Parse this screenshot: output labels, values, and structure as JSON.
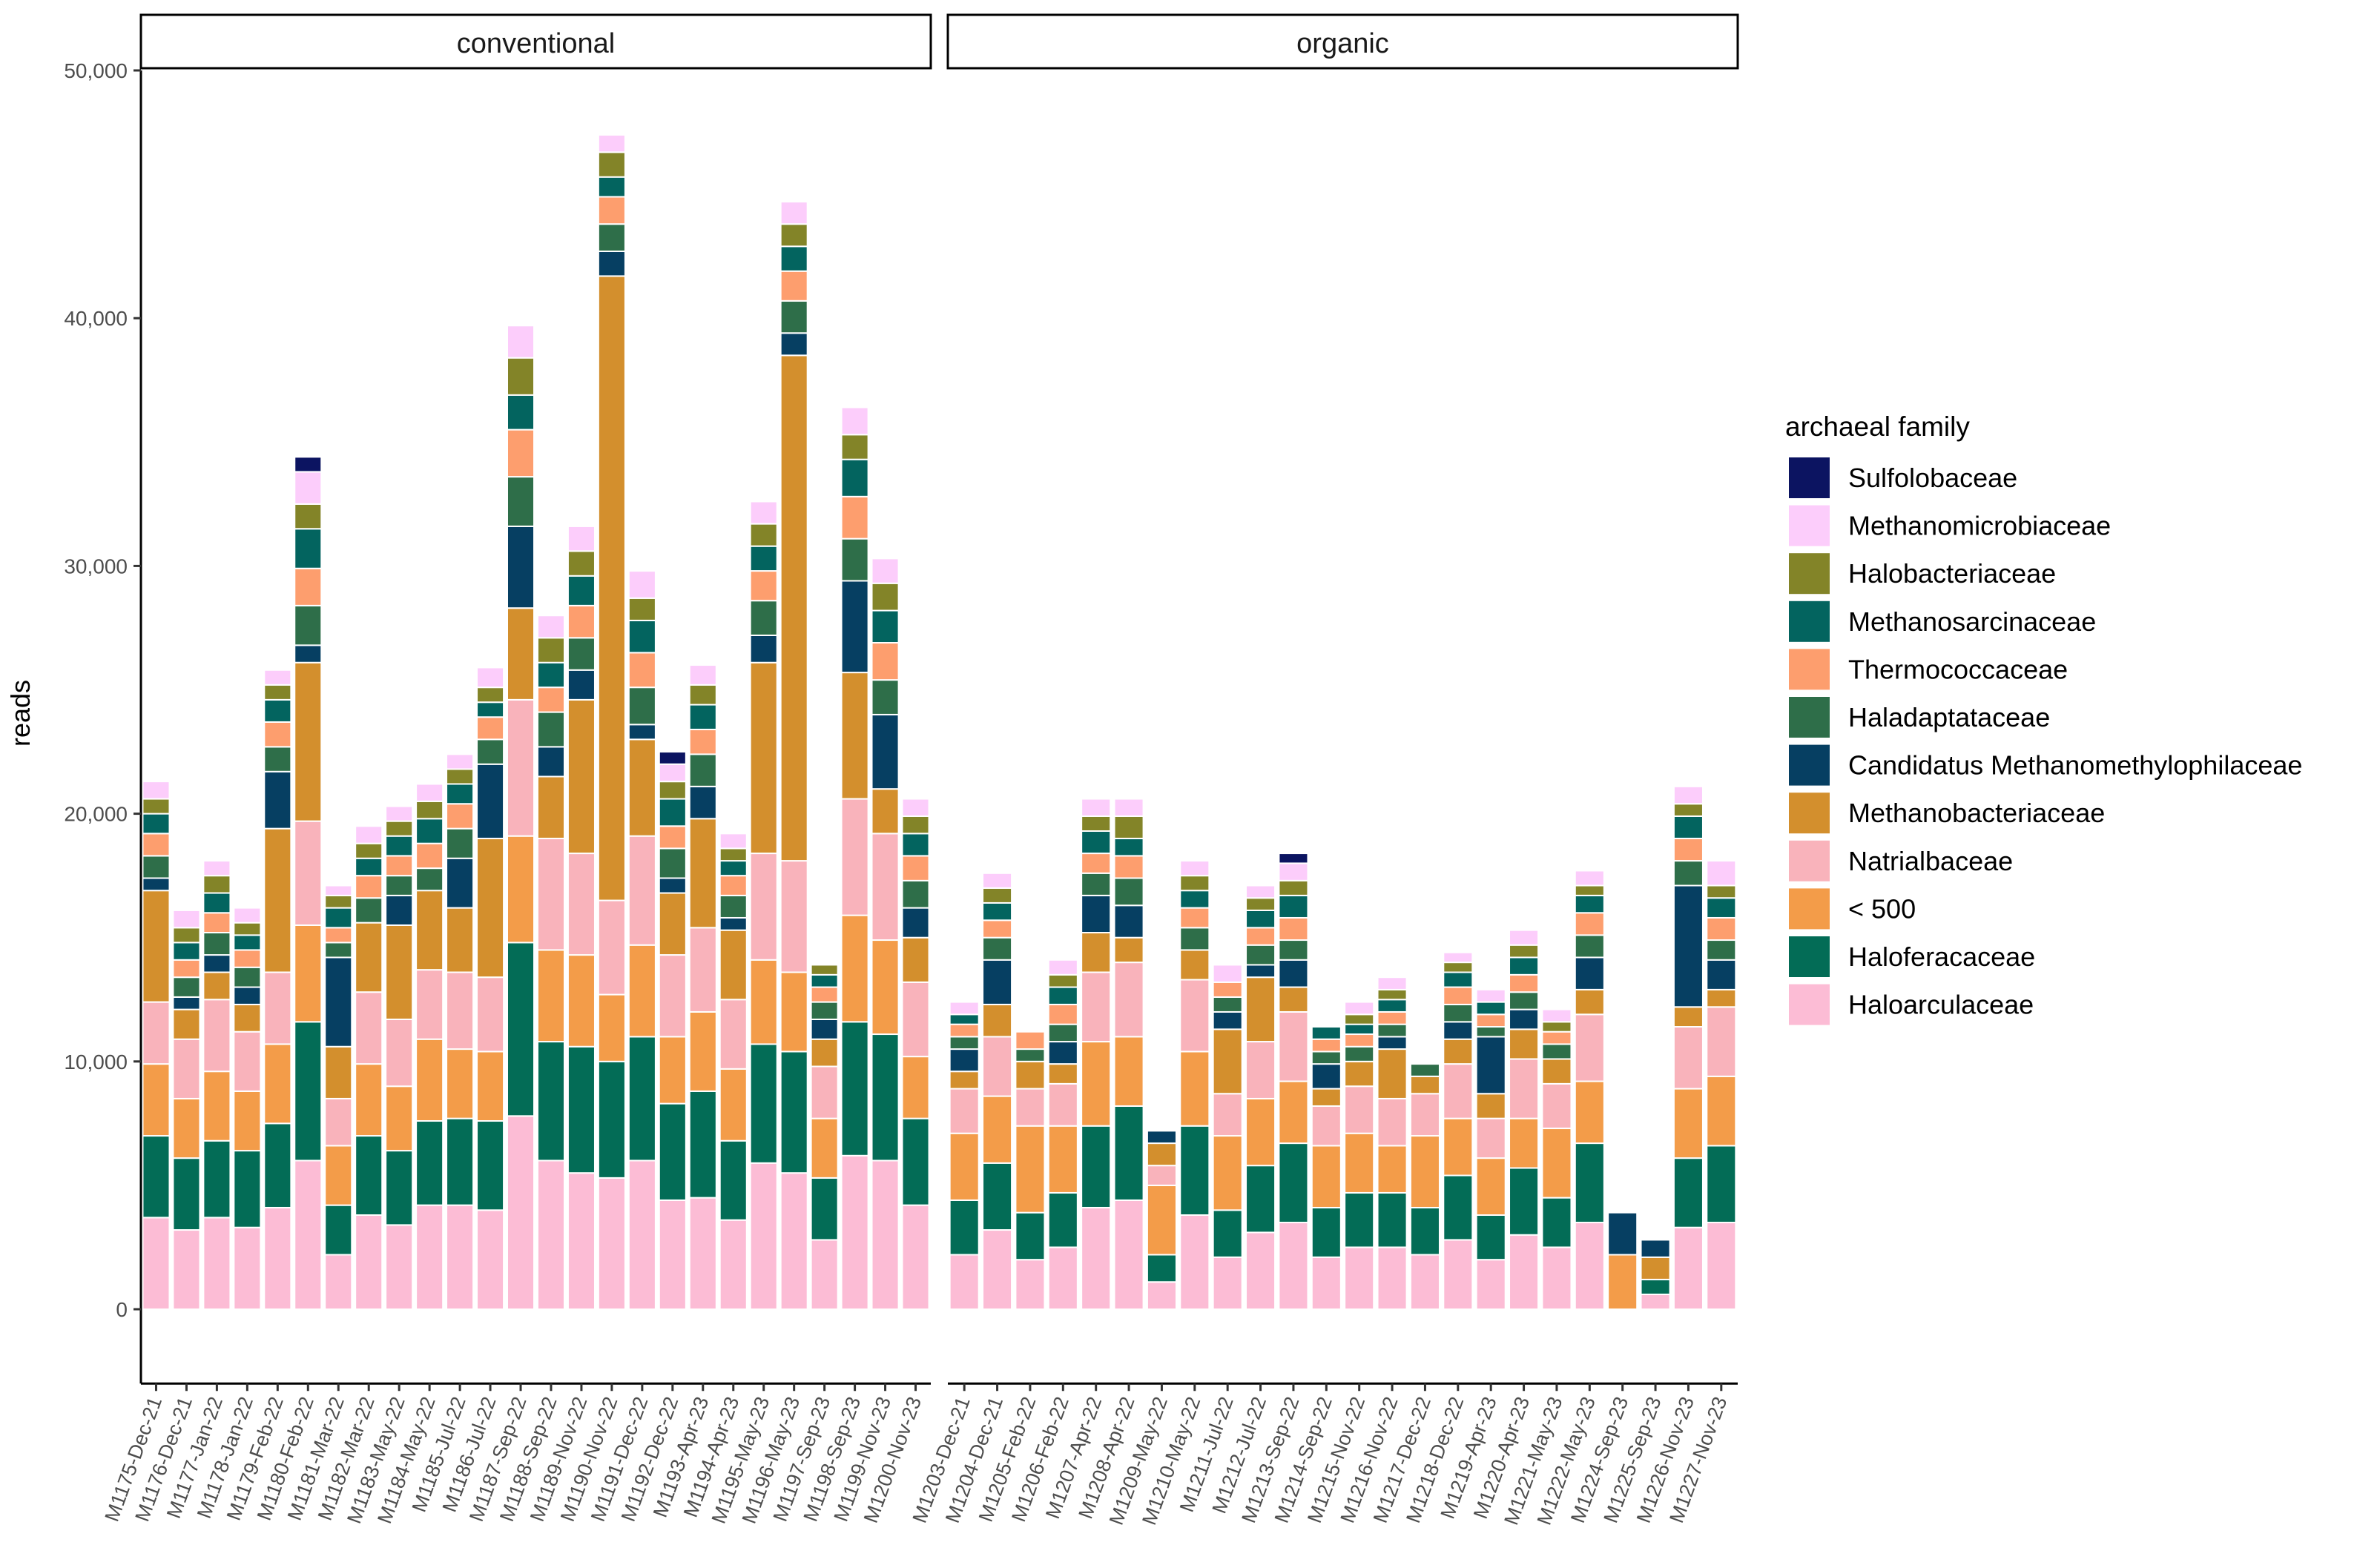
{
  "chart_data": {
    "type": "bar",
    "stacked": true,
    "ylabel": "reads",
    "xlabel": "",
    "ylim": [
      -3000,
      50000
    ],
    "yticks": [
      0,
      10000,
      20000,
      30000,
      40000,
      50000
    ],
    "ytick_labels": [
      "0",
      "10,000",
      "20,000",
      "30,000",
      "40,000",
      "50,000"
    ],
    "legend": {
      "title": "archaeal family",
      "position": "right",
      "entries": [
        {
          "name": "Sulfolobaceae",
          "color": "#0c1461"
        },
        {
          "name": "Methanomicrobiaceae",
          "color": "#fccdfb"
        },
        {
          "name": "Halobacteriaceae",
          "color": "#838428"
        },
        {
          "name": "Methanosarcinaceae",
          "color": "#03645f"
        },
        {
          "name": "Thermococcaceae",
          "color": "#fd9e6e"
        },
        {
          "name": "Haladaptataceae",
          "color": "#2e6e49"
        },
        {
          "name": "Candidatus Methanomethylophilaceae",
          "color": "#063f62"
        },
        {
          "name": "Methanobacteriaceae",
          "color": "#d38f2d"
        },
        {
          "name": "Natrialbaceae",
          "color": "#f9b3bb"
        },
        {
          "name": "< 500",
          "color": "#f39c49"
        },
        {
          "name": "Haloferacaceae",
          "color": "#036c56"
        },
        {
          "name": "Haloarculaceae",
          "color": "#fcbcd5"
        }
      ]
    },
    "stack_order": [
      "Haloarculaceae",
      "Haloferacaceae",
      "< 500",
      "Natrialbaceae",
      "Methanobacteriaceae",
      "Candidatus Methanomethylophilaceae",
      "Haladaptataceae",
      "Thermococcaceae",
      "Methanosarcinaceae",
      "Halobacteriaceae",
      "Methanomicrobiaceae",
      "Sulfolobaceae"
    ],
    "panels": [
      {
        "title": "conventional",
        "categories": [
          "M1175-Dec-21",
          "M1176-Dec-21",
          "M1177-Jan-22",
          "M1178-Jan-22",
          "M1179-Feb-22",
          "M1180-Feb-22",
          "M1181-Mar-22",
          "M1182-Mar-22",
          "M1183-May-22",
          "M1184-May-22",
          "M1185-Jul-22",
          "M1186-Jul-22",
          "M1187-Sep-22",
          "M1188-Sep-22",
          "M1189-Nov-22",
          "M1190-Nov-22",
          "M1191-Dec-22",
          "M1192-Dec-22",
          "M1193-Apr-23",
          "M1194-Apr-23",
          "M1195-May-23",
          "M1196-May-23",
          "M1197-Sep-23",
          "M1198-Sep-23",
          "M1199-Nov-23",
          "M1200-Nov-23"
        ],
        "series": [
          {
            "name": "Haloarculaceae",
            "values": [
              3700,
              3200,
              3700,
              3300,
              4100,
              6000,
              2200,
              3800,
              3400,
              4200,
              4200,
              4000,
              7800,
              6000,
              5500,
              5300,
              6000,
              4400,
              4500,
              3600,
              5900,
              5500,
              2800,
              6200,
              6000,
              4200
            ]
          },
          {
            "name": "Haloferacaceae",
            "values": [
              3300,
              2900,
              3100,
              3100,
              3400,
              5600,
              2000,
              3200,
              3000,
              3400,
              3500,
              3600,
              7000,
              4800,
              5100,
              4700,
              5000,
              3900,
              4300,
              3200,
              4800,
              4900,
              2500,
              5400,
              5100,
              3500
            ]
          },
          {
            "name": "< 500",
            "values": [
              2900,
              2400,
              2800,
              2400,
              3200,
              3900,
              2400,
              2900,
              2600,
              3300,
              2800,
              2800,
              4300,
              3700,
              3700,
              2700,
              3700,
              2700,
              3200,
              2900,
              3400,
              3200,
              2400,
              4300,
              3800,
              2500
            ]
          },
          {
            "name": "Natrialbaceae",
            "values": [
              2500,
              2400,
              2900,
              2400,
              2900,
              4200,
              1900,
              2900,
              2700,
              2800,
              3100,
              3000,
              5500,
              4500,
              4100,
              3800,
              4400,
              3300,
              3400,
              2800,
              4300,
              4500,
              2100,
              4700,
              4300,
              3000
            ]
          },
          {
            "name": "Methanobacteriaceae",
            "values": [
              4500,
              1200,
              1100,
              1100,
              5800,
              6400,
              2100,
              2800,
              3800,
              3200,
              2600,
              5600,
              3700,
              2500,
              6200,
              25200,
              3900,
              2500,
              4400,
              2800,
              7700,
              20400,
              1100,
              5100,
              1800,
              1800
            ]
          },
          {
            "name": "Candidatus Methanomethylophilaceae",
            "values": [
              500,
              500,
              700,
              700,
              2300,
              700,
              3600,
              0,
              1200,
              0,
              2000,
              3000,
              3300,
              1200,
              1200,
              1000,
              600,
              600,
              1300,
              500,
              1100,
              900,
              800,
              3700,
              3000,
              1200
            ]
          },
          {
            "name": "Haladaptataceae",
            "values": [
              900,
              800,
              900,
              800,
              1000,
              1600,
              600,
              1000,
              800,
              900,
              1200,
              1000,
              2000,
              1400,
              1300,
              1100,
              1500,
              1200,
              1300,
              900,
              1400,
              1300,
              700,
              1700,
              1400,
              1100
            ]
          },
          {
            "name": "Thermococcaceae",
            "values": [
              900,
              700,
              800,
              700,
              1000,
              1500,
              600,
              900,
              800,
              1000,
              1000,
              900,
              1900,
              1000,
              1300,
              1100,
              1400,
              900,
              1000,
              800,
              1200,
              1200,
              600,
              1700,
              1500,
              1000
            ]
          },
          {
            "name": "Methanosarcinaceae",
            "values": [
              800,
              700,
              800,
              600,
              900,
              1600,
              800,
              700,
              800,
              1000,
              800,
              600,
              1400,
              1000,
              1200,
              800,
              1300,
              1100,
              1000,
              600,
              1000,
              1000,
              500,
              1500,
              1300,
              900
            ]
          },
          {
            "name": "Halobacteriaceae",
            "values": [
              600,
              600,
              700,
              500,
              600,
              1000,
              500,
              600,
              600,
              700,
              600,
              600,
              1500,
              1000,
              1000,
              1000,
              900,
              700,
              800,
              500,
              900,
              900,
              400,
              1000,
              1100,
              700
            ]
          },
          {
            "name": "Methanomicrobiaceae",
            "values": [
              700,
              700,
              600,
              600,
              600,
              1300,
              400,
              700,
              600,
              700,
              600,
              800,
              1300,
              900,
              1000,
              700,
              1100,
              700,
              800,
              600,
              900,
              900,
              0,
              1100,
              1000,
              700
            ]
          },
          {
            "name": "Sulfolobaceae",
            "values": [
              0,
              0,
              0,
              0,
              0,
              600,
              0,
              0,
              0,
              0,
              0,
              0,
              0,
              0,
              0,
              0,
              0,
              500,
              0,
              0,
              0,
              0,
              0,
              0,
              0,
              0
            ]
          }
        ]
      },
      {
        "title": "organic",
        "categories": [
          "M1203-Dec-21",
          "M1204-Dec-21",
          "M1205-Feb-22",
          "M1206-Feb-22",
          "M1207-Apr-22",
          "M1208-Apr-22",
          "M1209-May-22",
          "M1210-May-22",
          "M1211-Jul-22",
          "M1212-Jul-22",
          "M1213-Sep-22",
          "M1214-Sep-22",
          "M1215-Nov-22",
          "M1216-Nov-22",
          "M1217-Dec-22",
          "M1218-Dec-22",
          "M1219-Apr-23",
          "M1220-Apr-23",
          "M1221-May-23",
          "M1222-May-23",
          "M1224-Sep-23",
          "M1225-Sep-23",
          "M1226-Nov-23",
          "M1227-Nov-23"
        ],
        "series": [
          {
            "name": "Haloarculaceae",
            "values": [
              2200,
              3200,
              2000,
              2500,
              4100,
              4400,
              1100,
              3800,
              2100,
              3100,
              3500,
              2100,
              2500,
              2500,
              2200,
              2800,
              2000,
              3000,
              2500,
              3500,
              0,
              600,
              3300,
              3500
            ]
          },
          {
            "name": "Haloferacaceae",
            "values": [
              2200,
              2700,
              1900,
              2200,
              3300,
              3800,
              1100,
              3600,
              1900,
              2700,
              3200,
              2000,
              2200,
              2200,
              1900,
              2600,
              1800,
              2700,
              2000,
              3200,
              0,
              600,
              2800,
              3100
            ]
          },
          {
            "name": "< 500",
            "values": [
              2700,
              2700,
              3500,
              2700,
              3400,
              2800,
              2800,
              3000,
              3000,
              2700,
              2500,
              2500,
              2400,
              1900,
              2900,
              2300,
              2300,
              2000,
              2800,
              2500,
              2200,
              0,
              2800,
              2800
            ]
          },
          {
            "name": "Natrialbaceae",
            "values": [
              1800,
              2400,
              1500,
              1700,
              2800,
              3000,
              800,
              2900,
              1700,
              2300,
              2800,
              1600,
              1900,
              1900,
              1700,
              2200,
              1600,
              2400,
              1800,
              2700,
              0,
              0,
              2500,
              2800
            ]
          },
          {
            "name": "Methanobacteriaceae",
            "values": [
              700,
              1300,
              1100,
              800,
              1600,
              1000,
              900,
              1200,
              2600,
              2600,
              1000,
              700,
              1000,
              2000,
              700,
              1000,
              1000,
              1200,
              1000,
              1000,
              0,
              900,
              800,
              700
            ]
          },
          {
            "name": "Candidatus Methanomethylophilaceae",
            "values": [
              900,
              1800,
              0,
              900,
              1500,
              1300,
              500,
              0,
              700,
              500,
              1100,
              1000,
              0,
              500,
              0,
              700,
              2300,
              800,
              0,
              1300,
              1700,
              700,
              4900,
              1200
            ]
          },
          {
            "name": "Haladaptataceae",
            "values": [
              500,
              900,
              500,
              700,
              900,
              1100,
              0,
              900,
              600,
              800,
              800,
              500,
              600,
              500,
              500,
              700,
              400,
              700,
              600,
              900,
              0,
              0,
              1000,
              800
            ]
          },
          {
            "name": "Thermococcaceae",
            "values": [
              500,
              700,
              700,
              800,
              800,
              900,
              0,
              800,
              600,
              700,
              900,
              500,
              500,
              500,
              0,
              700,
              500,
              700,
              500,
              900,
              0,
              0,
              900,
              900
            ]
          },
          {
            "name": "Methanosarcinaceae",
            "values": [
              400,
              700,
              0,
              700,
              900,
              700,
              0,
              700,
              0,
              700,
              900,
              500,
              400,
              500,
              0,
              600,
              500,
              700,
              0,
              700,
              0,
              0,
              900,
              800
            ]
          },
          {
            "name": "Halobacteriaceae",
            "values": [
              0,
              600,
              0,
              500,
              600,
              900,
              0,
              600,
              0,
              500,
              600,
              0,
              400,
              400,
              0,
              400,
              0,
              500,
              400,
              400,
              0,
              0,
              500,
              500
            ]
          },
          {
            "name": "Methanomicrobiaceae",
            "values": [
              500,
              600,
              0,
              600,
              700,
              700,
              0,
              600,
              700,
              500,
              700,
              0,
              500,
              500,
              0,
              400,
              500,
              600,
              500,
              600,
              0,
              0,
              700,
              1000
            ]
          },
          {
            "name": "Sulfolobaceae",
            "values": [
              0,
              0,
              0,
              0,
              0,
              0,
              0,
              0,
              0,
              0,
              400,
              0,
              0,
              0,
              0,
              0,
              0,
              0,
              0,
              0,
              0,
              0,
              0,
              0
            ]
          }
        ]
      }
    ]
  }
}
